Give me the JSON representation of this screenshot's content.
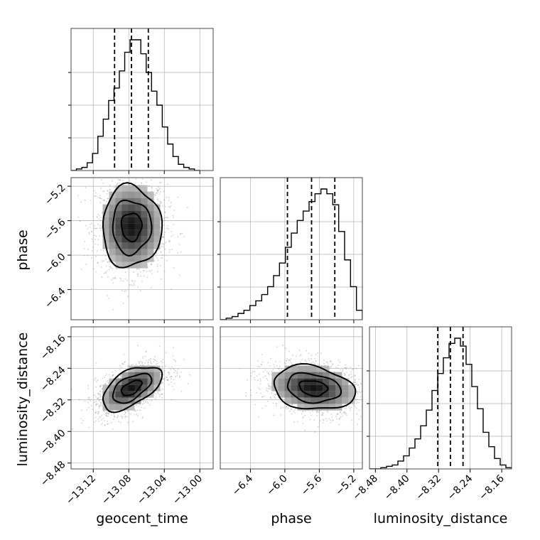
{
  "chart_data": {
    "type": "corner",
    "parameters": [
      "geocent_time",
      "phase",
      "luminosity_distance"
    ],
    "ranges": {
      "geocent_time": [
        -13.145,
        -12.985
      ],
      "phase": [
        -6.75,
        -5.1
      ],
      "luminosity_distance": [
        -8.495,
        -8.135
      ]
    },
    "ticks": {
      "geocent_time": [
        "−13.12",
        "−13.08",
        "−13.04",
        "−13.00"
      ],
      "phase": [
        "−6.4",
        "−6.0",
        "−5.6",
        "−5.2"
      ],
      "luminosity_distance": [
        "−8.48",
        "−8.40",
        "−8.32",
        "−8.24",
        "−8.16"
      ]
    },
    "tick_values": {
      "geocent_time": [
        -13.12,
        -13.08,
        -13.04,
        -13.0
      ],
      "phase": [
        -6.4,
        -6.0,
        -5.6,
        -5.2
      ],
      "luminosity_distance": [
        -8.48,
        -8.4,
        -8.32,
        -8.24,
        -8.16
      ]
    },
    "quantiles": {
      "geocent_time": [
        -13.096,
        -13.077,
        -13.058
      ],
      "phase": [
        -5.97,
        -5.69,
        -5.42
      ],
      "luminosity_distance": [
        -8.322,
        -8.29,
        -8.258
      ]
    },
    "histograms": {
      "geocent_time": [
        0,
        1,
        2,
        5,
        11,
        22,
        33,
        45,
        53,
        64,
        76,
        84,
        84,
        75,
        63,
        51,
        42,
        28,
        17,
        9,
        4,
        2,
        1,
        0
      ],
      "phase": [
        0,
        1,
        2,
        4,
        6,
        9,
        12,
        16,
        21,
        28,
        36,
        46,
        55,
        63,
        69,
        75,
        80,
        83,
        80,
        73,
        56,
        38,
        21,
        6
      ],
      "luminosity_distance": [
        0,
        0,
        1,
        2,
        3,
        6,
        10,
        16,
        23,
        33,
        45,
        60,
        73,
        85,
        96,
        100,
        94,
        80,
        63,
        46,
        28,
        17,
        8,
        3,
        1
      ]
    },
    "hist_ranges": {
      "geocent_time": [
        -13.145,
        -13.0
      ],
      "phase": [
        -6.75,
        -5.1
      ],
      "luminosity_distance": [
        -8.495,
        -8.135
      ]
    },
    "correlations": {
      "phase|geocent_time": 0.0,
      "luminosity_distance|geocent_time": 0.55,
      "luminosity_distance|phase": -0.2
    },
    "centers": {
      "geocent_time": -13.077,
      "phase": -5.67,
      "luminosity_distance": -8.29
    },
    "sigmas": {
      "geocent_time": 0.019,
      "phase": 0.27,
      "luminosity_distance": 0.032
    },
    "grid": true
  }
}
